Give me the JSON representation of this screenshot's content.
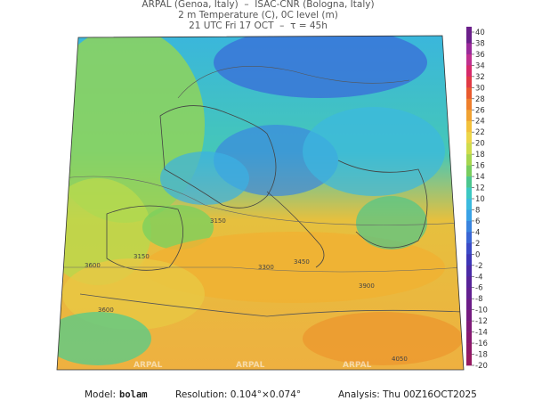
{
  "header": {
    "lines": [
      "ARPAL (Genoa, Italy)  –  ISAC-CNR (Bologna, Italy)",
      "2 m Temperature (C), 0C level (m)",
      "21 UTC Fri 17 OCT  –  τ = 45h"
    ]
  },
  "colorbar": {
    "labels": [
      40,
      38,
      36,
      34,
      32,
      30,
      28,
      26,
      24,
      22,
      20,
      18,
      16,
      14,
      12,
      10,
      8,
      6,
      4,
      2,
      0,
      -2,
      -4,
      -6,
      -8,
      -10,
      -12,
      -14,
      -16,
      -18,
      -20
    ],
    "colors": [
      "#6b1f8a",
      "#9a2a9a",
      "#c0308f",
      "#d62a6a",
      "#e03a45",
      "#e85a2e",
      "#ee7f2c",
      "#f0a232",
      "#f2c13c",
      "#ecd64a",
      "#cfdc4c",
      "#a6d64f",
      "#78cd5e",
      "#4cc68e",
      "#3cc8c2",
      "#3bbade",
      "#3aa2e6",
      "#3a84de",
      "#3a66d4",
      "#3b4ac6",
      "#3d36b6",
      "#4a2ba6",
      "#572498",
      "#622090",
      "#6c1d88",
      "#751b80",
      "#7e1a78",
      "#861870",
      "#8d1868",
      "#951860"
    ]
  },
  "contour_labels": [
    "3150",
    "3300",
    "3450",
    "3600",
    "3900",
    "4050",
    "3150",
    "3600"
  ],
  "watermark": "ARPAL",
  "footer": {
    "model_label": "Model:",
    "model": "bolam",
    "resolution": "Resolution: 0.104°×0.074°",
    "analysis": "Analysis: Thu 00Z16OCT2025"
  }
}
